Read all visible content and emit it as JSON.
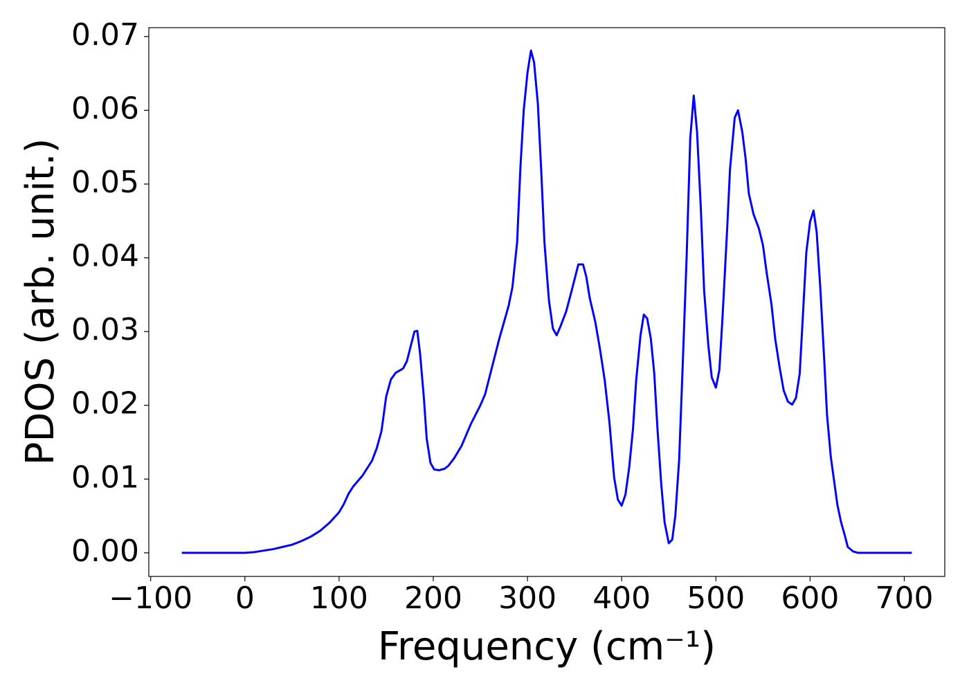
{
  "chart_data": {
    "type": "line",
    "xlabel": "Frequency (cm⁻¹)",
    "ylabel": "PDOS (arb. unit.)",
    "color": "#0000ff",
    "x": [
      -67,
      0,
      10,
      20,
      30,
      40,
      50,
      60,
      70,
      80,
      90,
      100,
      105,
      110,
      115,
      125,
      135,
      140,
      145,
      150,
      155,
      160,
      168,
      172,
      180,
      183,
      186,
      190,
      193,
      197,
      201,
      206,
      212,
      216,
      222,
      230,
      240,
      250,
      255,
      260,
      270,
      280,
      284,
      289,
      292.6,
      296,
      300,
      303.7,
      307,
      311,
      314.7,
      318,
      322.8,
      327,
      331,
      335,
      341,
      347,
      351,
      354,
      359,
      362.5,
      366,
      372,
      377,
      382,
      387,
      392,
      396,
      400,
      404,
      408,
      412,
      415.4,
      420,
      423.5,
      427,
      431,
      434.6,
      438,
      442,
      445.6,
      450,
      453.7,
      457,
      461,
      465,
      469,
      472.8,
      476.5,
      480,
      484,
      487.5,
      492,
      495.6,
      500,
      503.7,
      507,
      512,
      515,
      520,
      523.5,
      528,
      531.6,
      535,
      540,
      545.6,
      550,
      554,
      559,
      563,
      567.6,
      572,
      576.5,
      581,
      585,
      589,
      592.6,
      596,
      600,
      603.7,
      607,
      611,
      615,
      618,
      622,
      626,
      629,
      633,
      637,
      640,
      645.6,
      651,
      708
    ],
    "values": [
      0,
      0,
      0.0001,
      0.0003,
      0.0005,
      0.0008,
      0.0011,
      0.0016,
      0.0022,
      0.003,
      0.0041,
      0.0055,
      0.0066,
      0.008,
      0.009,
      0.0105,
      0.0125,
      0.0142,
      0.0165,
      0.0212,
      0.0235,
      0.0244,
      0.025,
      0.026,
      0.03,
      0.0301,
      0.027,
      0.021,
      0.0155,
      0.0122,
      0.0113,
      0.0112,
      0.0114,
      0.0118,
      0.0128,
      0.0145,
      0.0175,
      0.02,
      0.0215,
      0.024,
      0.029,
      0.0335,
      0.036,
      0.0421,
      0.0525,
      0.06,
      0.0651,
      0.0681,
      0.0665,
      0.0609,
      0.0515,
      0.0421,
      0.0342,
      0.0304,
      0.0295,
      0.0307,
      0.0327,
      0.0356,
      0.0376,
      0.0391,
      0.0391,
      0.0374,
      0.0346,
      0.0313,
      0.0276,
      0.0234,
      0.0177,
      0.0102,
      0.0072,
      0.0064,
      0.0079,
      0.0116,
      0.0168,
      0.0234,
      0.0295,
      0.0323,
      0.0318,
      0.029,
      0.0243,
      0.0168,
      0.0093,
      0.0041,
      0.0013,
      0.0018,
      0.0051,
      0.0126,
      0.0262,
      0.0403,
      0.0562,
      0.062,
      0.0571,
      0.0468,
      0.0356,
      0.0281,
      0.0238,
      0.0224,
      0.0248,
      0.0318,
      0.044,
      0.052,
      0.059,
      0.06,
      0.0571,
      0.0534,
      0.0487,
      0.0459,
      0.044,
      0.0417,
      0.0379,
      0.0337,
      0.029,
      0.0252,
      0.022,
      0.0205,
      0.0201,
      0.021,
      0.0243,
      0.0327,
      0.0407,
      0.0449,
      0.0464,
      0.0435,
      0.0356,
      0.0262,
      0.0187,
      0.013,
      0.0093,
      0.0065,
      0.0041,
      0.0023,
      0.0008,
      0.0002,
      0,
      0
    ],
    "xlim": [
      -102,
      743
    ],
    "ylim": [
      -0.0032,
      0.0712
    ],
    "xticks": [
      {
        "value": -100,
        "label": "−100"
      },
      0,
      100,
      200,
      300,
      400,
      500,
      600,
      700
    ],
    "yticks": [
      {
        "value": 0,
        "label": "0.00"
      },
      {
        "value": 0.01,
        "label": "0.01"
      },
      {
        "value": 0.02,
        "label": "0.02"
      },
      {
        "value": 0.03,
        "label": "0.03"
      },
      {
        "value": 0.04,
        "label": "0.04"
      },
      {
        "value": 0.05,
        "label": "0.05"
      },
      {
        "value": 0.06,
        "label": "0.06"
      },
      {
        "value": 0.07,
        "label": "0.07"
      }
    ],
    "grid": false
  }
}
